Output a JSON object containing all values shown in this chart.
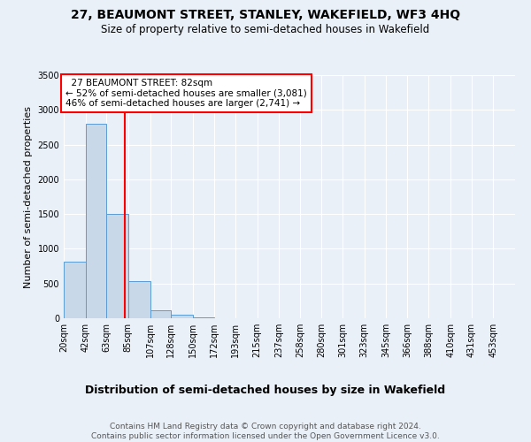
{
  "title": "27, BEAUMONT STREET, STANLEY, WAKEFIELD, WF3 4HQ",
  "subtitle": "Size of property relative to semi-detached houses in Wakefield",
  "xlabel": "Distribution of semi-detached houses by size in Wakefield",
  "ylabel": "Number of semi-detached properties",
  "footer_line1": "Contains HM Land Registry data © Crown copyright and database right 2024.",
  "footer_line2": "Contains public sector information licensed under the Open Government Licence v3.0.",
  "property_label": "27 BEAUMONT STREET: 82sqm",
  "pct_smaller": 52,
  "count_smaller": 3081,
  "pct_larger": 46,
  "count_larger": 2741,
  "bin_labels": [
    "20sqm",
    "42sqm",
    "63sqm",
    "85sqm",
    "107sqm",
    "128sqm",
    "150sqm",
    "172sqm",
    "193sqm",
    "215sqm",
    "237sqm",
    "258sqm",
    "280sqm",
    "301sqm",
    "323sqm",
    "345sqm",
    "366sqm",
    "388sqm",
    "410sqm",
    "431sqm",
    "453sqm"
  ],
  "bin_edges": [
    20,
    42,
    63,
    85,
    107,
    128,
    150,
    172,
    193,
    215,
    237,
    258,
    280,
    301,
    323,
    345,
    366,
    388,
    410,
    431,
    453
  ],
  "bar_heights": [
    820,
    2800,
    1500,
    540,
    120,
    55,
    10,
    0,
    0,
    0,
    0,
    0,
    0,
    0,
    0,
    0,
    0,
    0,
    0,
    0
  ],
  "bar_color": "#c8d8e8",
  "bar_edge_color": "#5b9bd5",
  "vline_x": 82,
  "vline_color": "red",
  "ylim": [
    0,
    3500
  ],
  "yticks": [
    0,
    500,
    1000,
    1500,
    2000,
    2500,
    3000,
    3500
  ],
  "background_color": "#eaf0f8",
  "plot_background": "#eaf0f8",
  "title_fontsize": 10,
  "subtitle_fontsize": 8.5,
  "ylabel_fontsize": 8,
  "xlabel_fontsize": 9,
  "tick_fontsize": 7,
  "annot_fontsize": 7.5,
  "footer_fontsize": 6.5
}
